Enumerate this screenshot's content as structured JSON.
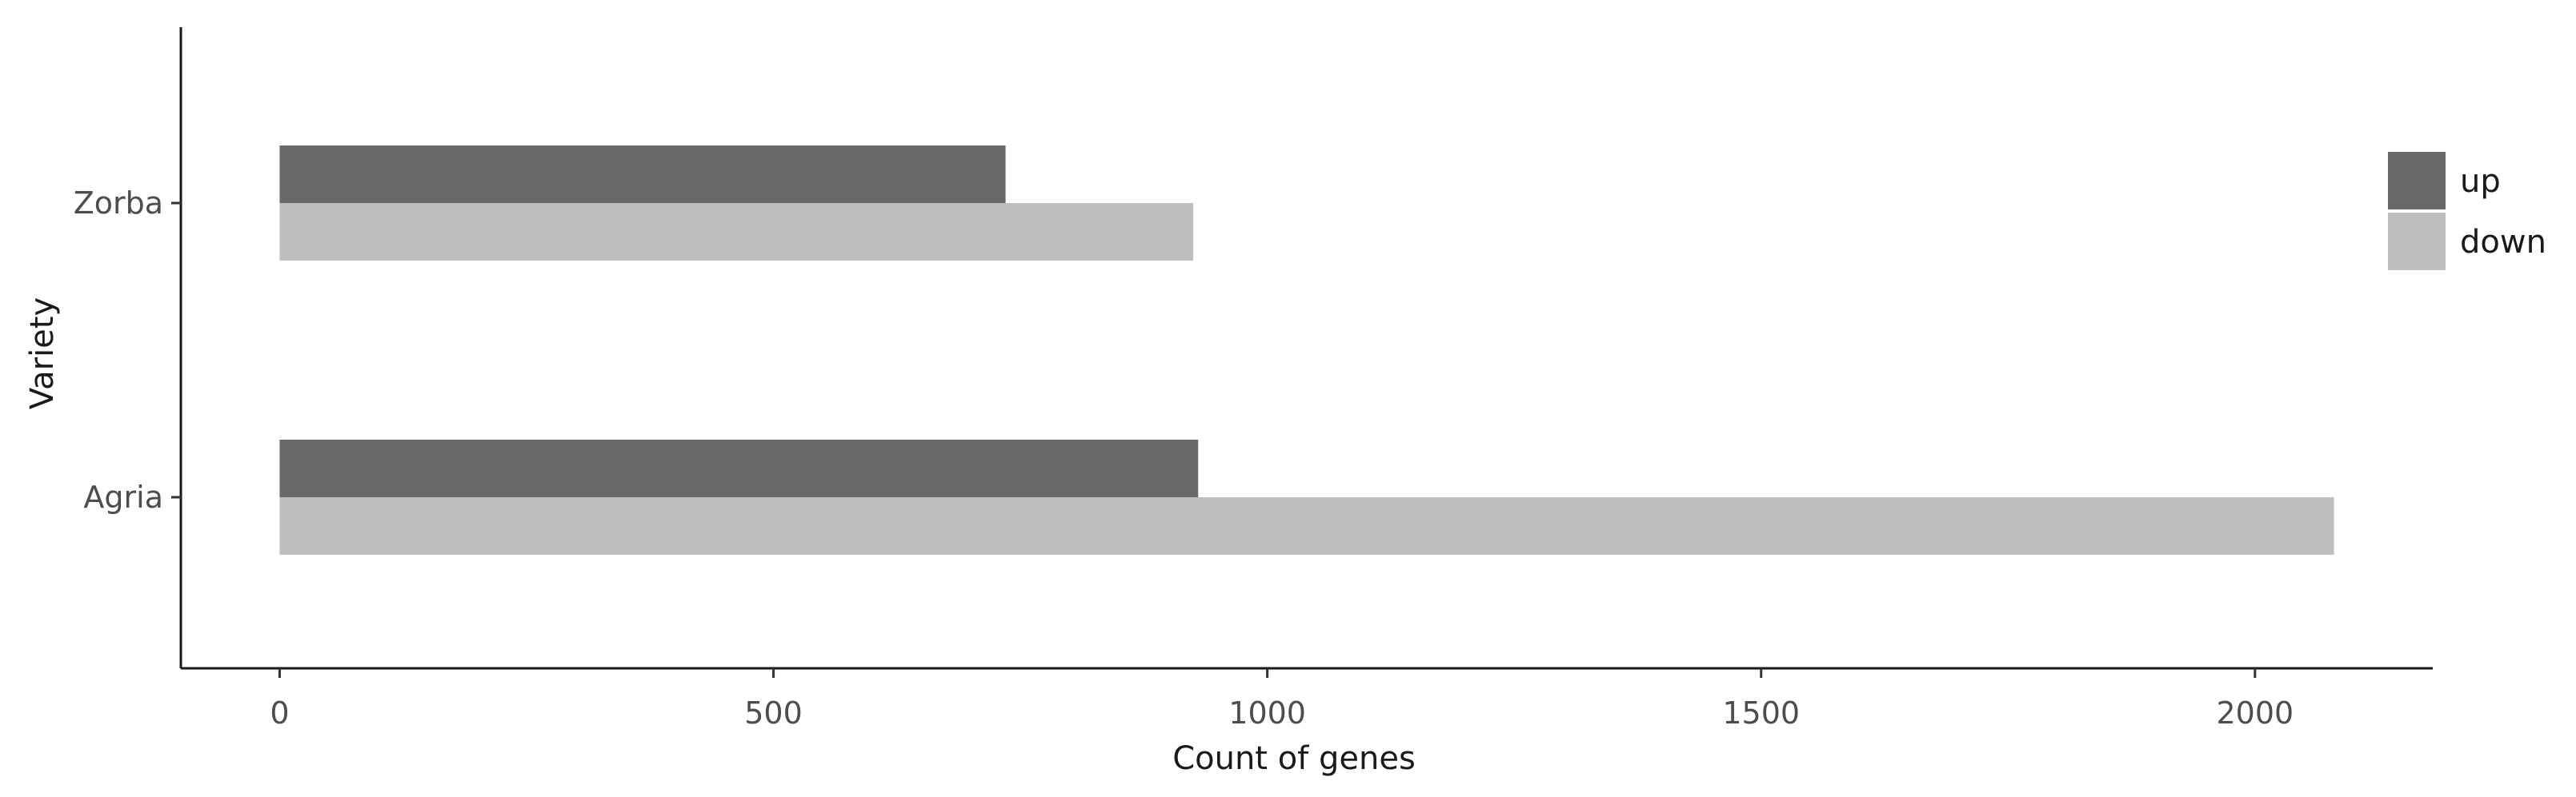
{
  "chart_data": {
    "type": "bar",
    "orientation": "horizontal",
    "categories": [
      "Agria",
      "Zorba"
    ],
    "series": [
      {
        "name": "up",
        "values": [
          930,
          735
        ],
        "color": "#696969"
      },
      {
        "name": "down",
        "values": [
          2080,
          925
        ],
        "color": "#bebebe"
      }
    ],
    "xlabel": "Count of genes",
    "ylabel": "Variety",
    "xlim": [
      -100,
      2180
    ],
    "xticks": [
      0,
      500,
      1000,
      1500,
      2000
    ],
    "grid": false,
    "legend_position": "right"
  }
}
